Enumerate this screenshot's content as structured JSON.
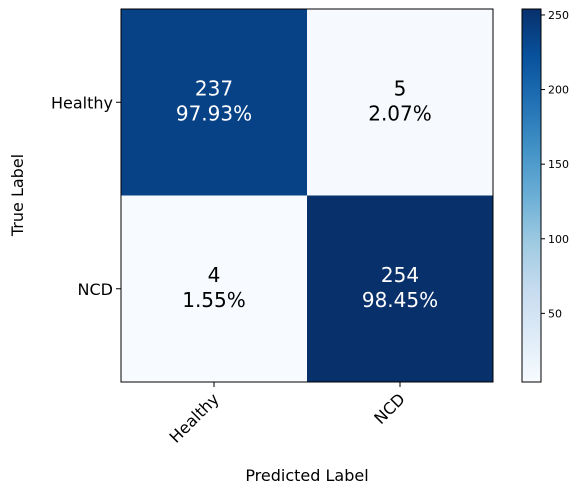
{
  "chart_data": {
    "type": "heatmap",
    "title": "",
    "xlabel": "Predicted Label",
    "ylabel": "True Label",
    "x_categories": [
      "Healthy",
      "NCD"
    ],
    "y_categories": [
      "Healthy",
      "NCD"
    ],
    "matrix": [
      [
        237,
        5
      ],
      [
        4,
        254
      ]
    ],
    "cell_labels": [
      [
        {
          "count": "237",
          "percent": "97.93%"
        },
        {
          "count": "5",
          "percent": "2.07%"
        }
      ],
      [
        {
          "count": "4",
          "percent": "1.55%"
        },
        {
          "count": "254",
          "percent": "98.45%"
        }
      ]
    ],
    "colormap": "Blues",
    "colorbar": {
      "range": [
        4,
        254
      ],
      "ticks": [
        "50",
        "100",
        "150",
        "200",
        "250"
      ]
    },
    "grid": false
  }
}
